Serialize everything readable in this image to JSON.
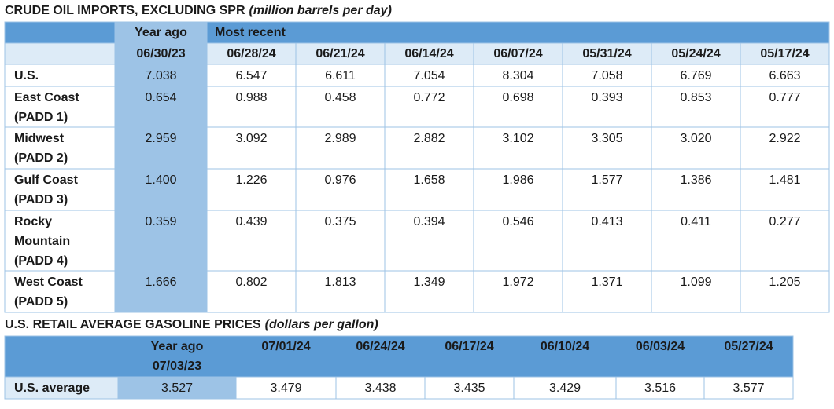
{
  "imports": {
    "title": "CRUDE OIL IMPORTS, EXCLUDING SPR",
    "unit": "(million barrels per day)",
    "year_ago_label": "Year ago",
    "recent_label": "Most recent",
    "dates": [
      "06/30/23",
      "06/28/24",
      "06/21/24",
      "06/14/24",
      "06/07/24",
      "05/31/24",
      "05/24/24",
      "05/17/24"
    ],
    "rows": [
      {
        "label": [
          "U.S."
        ],
        "values": [
          "7.038",
          "6.547",
          "6.611",
          "7.054",
          "8.304",
          "7.058",
          "6.769",
          "6.663"
        ]
      },
      {
        "label": [
          "East Coast",
          "(PADD 1)"
        ],
        "values": [
          "0.654",
          "0.988",
          "0.458",
          "0.772",
          "0.698",
          "0.393",
          "0.853",
          "0.777"
        ]
      },
      {
        "label": [
          "Midwest",
          "(PADD 2)"
        ],
        "values": [
          "2.959",
          "3.092",
          "2.989",
          "2.882",
          "3.102",
          "3.305",
          "3.020",
          "2.922"
        ]
      },
      {
        "label": [
          "Gulf Coast",
          "(PADD 3)"
        ],
        "values": [
          "1.400",
          "1.226",
          "0.976",
          "1.658",
          "1.986",
          "1.577",
          "1.386",
          "1.481"
        ]
      },
      {
        "label": [
          "Rocky",
          "Mountain",
          "(PADD 4)"
        ],
        "values": [
          "0.359",
          "0.439",
          "0.375",
          "0.394",
          "0.546",
          "0.413",
          "0.411",
          "0.277"
        ]
      },
      {
        "label": [
          "West Coast",
          "(PADD 5)"
        ],
        "values": [
          "1.666",
          "0.802",
          "1.813",
          "1.349",
          "1.972",
          "1.371",
          "1.099",
          "1.205"
        ]
      }
    ]
  },
  "gasoline": {
    "title": "U.S. RETAIL AVERAGE GASOLINE PRICES",
    "unit": "(dollars per gallon)",
    "year_ago_label": "Year ago",
    "dates": [
      "07/03/23",
      "07/01/24",
      "06/24/24",
      "06/17/24",
      "06/10/24",
      "06/03/24",
      "05/27/24"
    ],
    "row_label": "U.S. average",
    "values": [
      "3.527",
      "3.479",
      "3.438",
      "3.435",
      "3.429",
      "3.516",
      "3.577"
    ]
  }
}
